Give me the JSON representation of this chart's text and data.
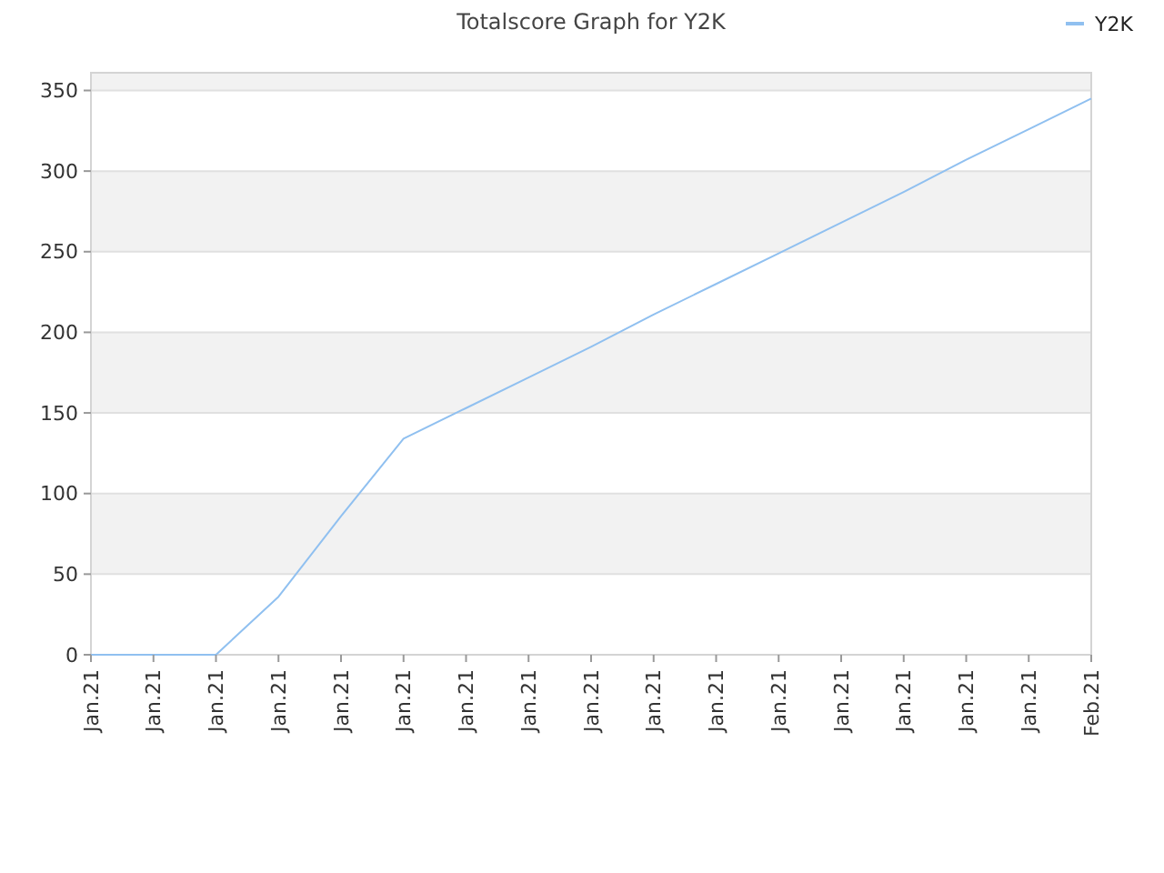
{
  "chart_data": {
    "type": "line",
    "title": "Totalscore Graph for Y2K",
    "categories": [
      "Jan.21",
      "Jan.21",
      "Jan.21",
      "Jan.21",
      "Jan.21",
      "Jan.21",
      "Jan.21",
      "Jan.21",
      "Jan.21",
      "Jan.21",
      "Jan.21",
      "Jan.21",
      "Jan.21",
      "Jan.21",
      "Jan.21",
      "Jan.21",
      "Feb.21"
    ],
    "series": [
      {
        "name": "Y2K",
        "color": "#90c0f0",
        "values": [
          0,
          0,
          0,
          36,
          86,
          134,
          153,
          172,
          191,
          211,
          230,
          249,
          268,
          287,
          307,
          326,
          345
        ]
      }
    ],
    "ylim": [
      0,
      361
    ],
    "yticks": [
      0,
      50,
      100,
      150,
      200,
      250,
      300,
      350
    ],
    "grid": "y",
    "legend": "top right",
    "marker": "none",
    "line_style": "solid"
  }
}
